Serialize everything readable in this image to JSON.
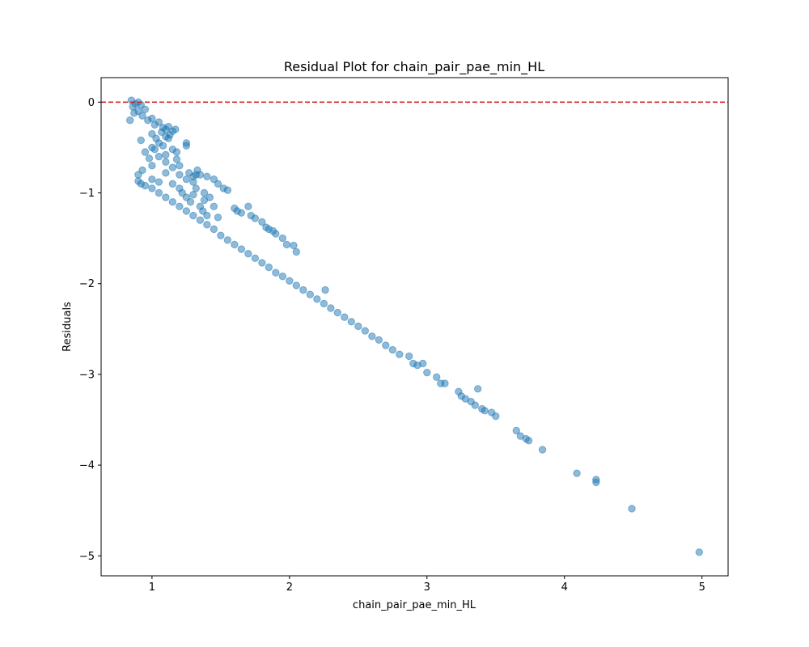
{
  "chart_data": {
    "type": "scatter",
    "title": "Residual Plot for chain_pair_pae_min_HL",
    "xlabel": "chain_pair_pae_min_HL",
    "ylabel": "Residuals",
    "xlim": [
      0.63,
      5.19
    ],
    "ylim": [
      -5.22,
      0.27
    ],
    "xticks": [
      1,
      2,
      3,
      4,
      5
    ],
    "xtick_labels": [
      "1",
      "2",
      "3",
      "4",
      "5"
    ],
    "yticks": [
      0,
      -1,
      -2,
      -3,
      -4,
      -5
    ],
    "ytick_labels": [
      "0",
      "−1",
      "−2",
      "−3",
      "−4",
      "−5"
    ],
    "grid": false,
    "reference_line": {
      "y": 0,
      "color": "#d62728",
      "style": "dashed"
    },
    "series": [
      {
        "color": "#1f77b4",
        "alpha": 0.5,
        "points": [
          [
            0.85,
            0.02
          ],
          [
            0.86,
            -0.05
          ],
          [
            0.88,
            -0.02
          ],
          [
            0.9,
            0.0
          ],
          [
            0.92,
            -0.03
          ],
          [
            0.84,
            -0.2
          ],
          [
            0.87,
            -0.12
          ],
          [
            0.9,
            -0.1
          ],
          [
            0.93,
            -0.15
          ],
          [
            0.95,
            -0.08
          ],
          [
            0.97,
            -0.2
          ],
          [
            1.0,
            -0.18
          ],
          [
            1.02,
            -0.25
          ],
          [
            1.05,
            -0.22
          ],
          [
            1.08,
            -0.28
          ],
          [
            1.1,
            -0.3
          ],
          [
            1.12,
            -0.27
          ],
          [
            1.15,
            -0.32
          ],
          [
            0.92,
            -0.42
          ],
          [
            0.95,
            -0.55
          ],
          [
            0.98,
            -0.62
          ],
          [
            1.0,
            -0.7
          ],
          [
            1.02,
            -0.52
          ],
          [
            1.05,
            -0.6
          ],
          [
            1.08,
            -0.48
          ],
          [
            1.1,
            -0.66
          ],
          [
            1.12,
            -0.4
          ],
          [
            1.15,
            -0.72
          ],
          [
            1.18,
            -0.55
          ],
          [
            1.2,
            -0.8
          ],
          [
            1.25,
            -0.45
          ],
          [
            1.25,
            -0.48
          ],
          [
            1.27,
            -0.78
          ],
          [
            1.3,
            -0.82
          ],
          [
            1.32,
            -0.8
          ],
          [
            1.33,
            -0.75
          ],
          [
            0.93,
            -0.75
          ],
          [
            0.9,
            -0.8
          ],
          [
            0.9,
            -0.87
          ],
          [
            0.92,
            -0.9
          ],
          [
            0.95,
            -0.92
          ],
          [
            1.0,
            -0.95
          ],
          [
            1.05,
            -1.0
          ],
          [
            1.1,
            -1.05
          ],
          [
            1.15,
            -1.1
          ],
          [
            1.2,
            -1.15
          ],
          [
            1.25,
            -1.2
          ],
          [
            1.3,
            -1.25
          ],
          [
            1.35,
            -1.3
          ],
          [
            1.4,
            -1.35
          ],
          [
            1.45,
            -1.4
          ],
          [
            1.5,
            -1.47
          ],
          [
            1.55,
            -1.52
          ],
          [
            1.6,
            -1.57
          ],
          [
            1.65,
            -1.62
          ],
          [
            1.7,
            -1.67
          ],
          [
            1.75,
            -1.72
          ],
          [
            1.8,
            -1.77
          ],
          [
            1.85,
            -1.82
          ],
          [
            1.9,
            -1.88
          ],
          [
            1.95,
            -1.92
          ],
          [
            2.0,
            -1.97
          ],
          [
            2.05,
            -2.02
          ],
          [
            2.1,
            -2.07
          ],
          [
            2.15,
            -2.12
          ],
          [
            2.2,
            -2.17
          ],
          [
            2.25,
            -2.22
          ],
          [
            2.3,
            -2.27
          ],
          [
            2.35,
            -2.32
          ],
          [
            2.4,
            -2.37
          ],
          [
            2.45,
            -2.42
          ],
          [
            2.5,
            -2.47
          ],
          [
            2.55,
            -2.52
          ],
          [
            2.6,
            -2.58
          ],
          [
            2.65,
            -2.62
          ],
          [
            2.7,
            -2.68
          ],
          [
            2.75,
            -2.73
          ],
          [
            2.8,
            -2.78
          ],
          [
            2.87,
            -2.8
          ],
          [
            2.9,
            -2.88
          ],
          [
            2.93,
            -2.9
          ],
          [
            2.97,
            -2.88
          ],
          [
            3.0,
            -2.98
          ],
          [
            3.07,
            -3.03
          ],
          [
            3.1,
            -3.1
          ],
          [
            3.13,
            -3.1
          ],
          [
            3.23,
            -3.19
          ],
          [
            3.25,
            -3.24
          ],
          [
            3.28,
            -3.27
          ],
          [
            3.32,
            -3.3
          ],
          [
            3.35,
            -3.34
          ],
          [
            3.37,
            -3.16
          ],
          [
            3.4,
            -3.38
          ],
          [
            3.42,
            -3.4
          ],
          [
            3.47,
            -3.42
          ],
          [
            3.5,
            -3.46
          ],
          [
            3.65,
            -3.62
          ],
          [
            3.68,
            -3.68
          ],
          [
            3.72,
            -3.71
          ],
          [
            3.74,
            -3.73
          ],
          [
            3.84,
            -3.83
          ],
          [
            4.09,
            -4.09
          ],
          [
            4.23,
            -4.16
          ],
          [
            4.23,
            -4.19
          ],
          [
            4.49,
            -4.48
          ],
          [
            4.98,
            -4.96
          ],
          [
            1.25,
            -0.85
          ],
          [
            1.3,
            -0.88
          ],
          [
            1.35,
            -0.8
          ],
          [
            1.4,
            -0.82
          ],
          [
            1.45,
            -0.85
          ],
          [
            1.48,
            -0.9
          ],
          [
            1.52,
            -0.95
          ],
          [
            1.55,
            -0.97
          ],
          [
            1.32,
            -0.95
          ],
          [
            1.38,
            -1.0
          ],
          [
            1.42,
            -1.05
          ],
          [
            1.38,
            -1.08
          ],
          [
            1.45,
            -1.15
          ],
          [
            1.48,
            -1.27
          ],
          [
            1.6,
            -1.17
          ],
          [
            1.62,
            -1.2
          ],
          [
            1.65,
            -1.22
          ],
          [
            1.7,
            -1.15
          ],
          [
            1.72,
            -1.25
          ],
          [
            1.75,
            -1.28
          ],
          [
            1.8,
            -1.32
          ],
          [
            1.83,
            -1.38
          ],
          [
            1.85,
            -1.4
          ],
          [
            1.88,
            -1.42
          ],
          [
            1.9,
            -1.45
          ],
          [
            1.95,
            -1.5
          ],
          [
            1.98,
            -1.57
          ],
          [
            2.03,
            -1.58
          ],
          [
            2.05,
            -1.65
          ],
          [
            2.26,
            -2.07
          ],
          [
            1.0,
            -0.35
          ],
          [
            1.03,
            -0.4
          ],
          [
            1.07,
            -0.33
          ],
          [
            1.1,
            -0.38
          ],
          [
            1.13,
            -0.36
          ],
          [
            1.17,
            -0.3
          ],
          [
            1.0,
            -0.5
          ],
          [
            1.05,
            -0.45
          ],
          [
            1.1,
            -0.58
          ],
          [
            1.15,
            -0.52
          ],
          [
            1.18,
            -0.63
          ],
          [
            1.2,
            -0.7
          ],
          [
            1.0,
            -0.85
          ],
          [
            1.05,
            -0.88
          ],
          [
            1.1,
            -0.78
          ],
          [
            1.15,
            -0.9
          ],
          [
            1.2,
            -0.95
          ],
          [
            1.22,
            -1.0
          ],
          [
            1.25,
            -1.05
          ],
          [
            1.28,
            -1.1
          ],
          [
            1.3,
            -1.02
          ],
          [
            1.35,
            -1.15
          ],
          [
            1.37,
            -1.2
          ],
          [
            1.4,
            -1.25
          ]
        ]
      }
    ]
  }
}
